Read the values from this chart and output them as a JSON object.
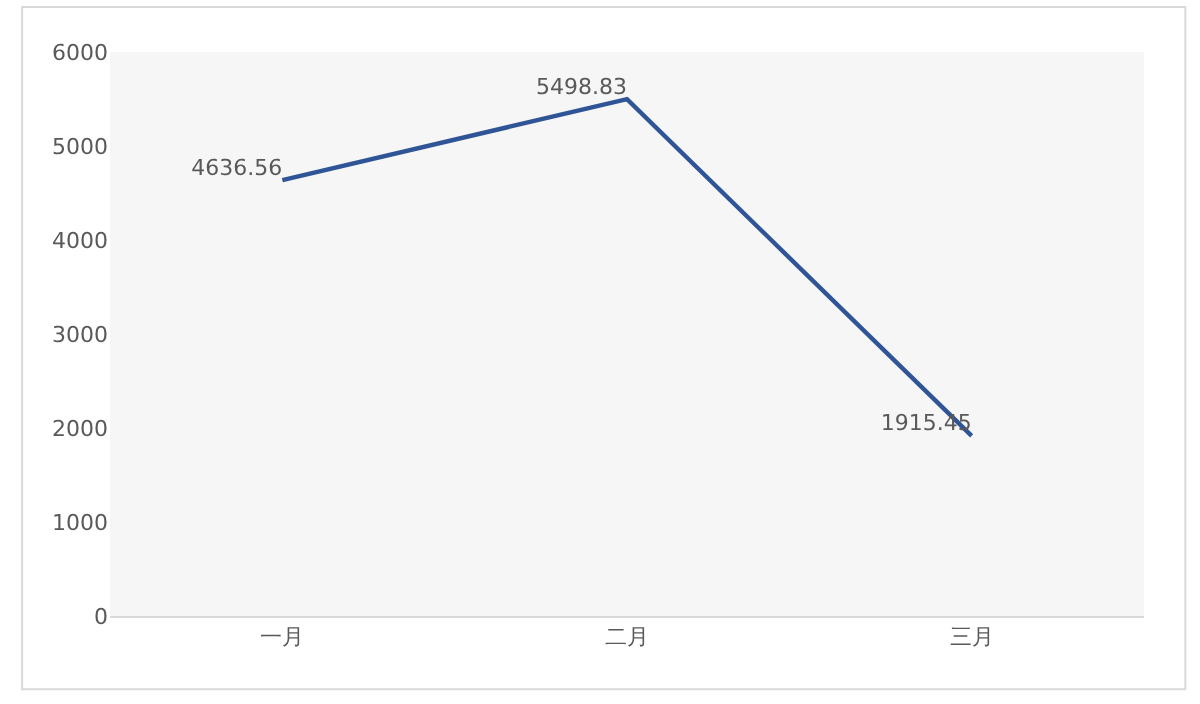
{
  "chart_data": {
    "type": "line",
    "categories": [
      "一月",
      "二月",
      "三月"
    ],
    "series": [
      {
        "color": "#2f5597",
        "values": [
          4636.56,
          5498.83,
          1915.45
        ]
      }
    ],
    "ylim": [
      0,
      6000
    ],
    "yticks": [
      0,
      1000,
      2000,
      3000,
      4000,
      5000,
      6000
    ],
    "grid": false,
    "marker": "none",
    "line_style": "solid",
    "data_labels": true
  }
}
